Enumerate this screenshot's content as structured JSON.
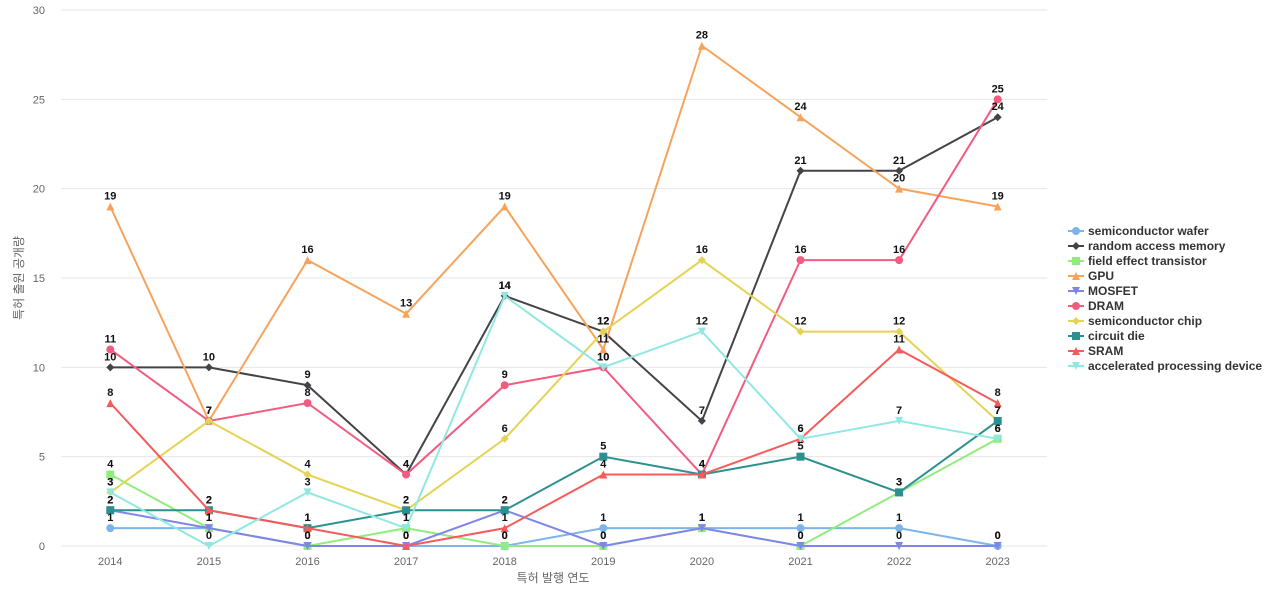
{
  "chart_data": {
    "type": "line",
    "title": "",
    "xlabel": "특허 발행 연도",
    "ylabel": "특허 출원 공개량",
    "ylim": [
      0,
      30
    ],
    "yticks": [
      0,
      5,
      10,
      15,
      20,
      25,
      30
    ],
    "grid": true,
    "legend_position": "right",
    "categories": [
      "2014",
      "2015",
      "2016",
      "2017",
      "2018",
      "2019",
      "2020",
      "2021",
      "2022",
      "2023"
    ],
    "series": [
      {
        "name": "semiconductor wafer",
        "color": "#7cb5ec",
        "marker": "circle",
        "values": [
          1,
          1,
          0,
          0,
          0,
          1,
          1,
          1,
          1,
          0
        ]
      },
      {
        "name": "random access memory",
        "color": "#434348",
        "marker": "diamond",
        "values": [
          10,
          10,
          9,
          4,
          14,
          12,
          7,
          21,
          21,
          24
        ]
      },
      {
        "name": "field effect transistor",
        "color": "#90ed7d",
        "marker": "square",
        "values": [
          4,
          1,
          0,
          1,
          0,
          0,
          1,
          0,
          3,
          6
        ]
      },
      {
        "name": "GPU",
        "color": "#f7a35c",
        "marker": "triangle",
        "values": [
          19,
          7,
          16,
          13,
          19,
          11,
          28,
          24,
          20,
          19
        ]
      },
      {
        "name": "MOSFET",
        "color": "#8085e9",
        "marker": "triangle-down",
        "values": [
          2,
          1,
          0,
          0,
          2,
          0,
          1,
          0,
          0,
          0
        ]
      },
      {
        "name": "DRAM",
        "color": "#f15c80",
        "marker": "circle",
        "values": [
          11,
          7,
          8,
          4,
          9,
          10,
          4,
          16,
          16,
          25
        ]
      },
      {
        "name": "semiconductor chip",
        "color": "#e4d354",
        "marker": "diamond",
        "values": [
          3,
          7,
          4,
          2,
          6,
          12,
          16,
          12,
          12,
          7
        ]
      },
      {
        "name": "circuit die",
        "color": "#2b908f",
        "marker": "square",
        "values": [
          2,
          2,
          1,
          2,
          2,
          5,
          4,
          5,
          3,
          7
        ]
      },
      {
        "name": "SRAM",
        "color": "#f45b5b",
        "marker": "triangle",
        "values": [
          8,
          2,
          1,
          0,
          1,
          4,
          4,
          6,
          11,
          8
        ]
      },
      {
        "name": "accelerated processing device",
        "color": "#91e8e1",
        "marker": "triangle-down",
        "values": [
          3,
          0,
          3,
          1,
          14,
          10,
          12,
          6,
          7,
          6
        ]
      }
    ]
  }
}
